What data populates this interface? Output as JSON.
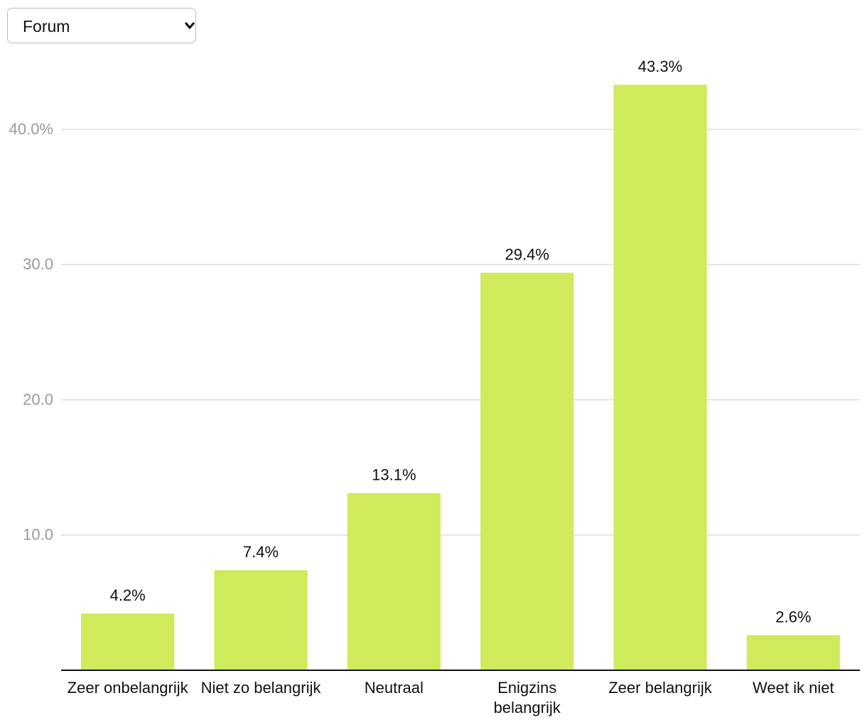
{
  "dropdown": {
    "selected": "Forum"
  },
  "chart_data": {
    "type": "bar",
    "categories": [
      "Zeer onbelangrijk",
      "Niet zo belangrijk",
      "Neutraal",
      "Enigzins belangrijk",
      "Zeer belangrijk",
      "Weet ik niet"
    ],
    "values": [
      4.2,
      7.4,
      13.1,
      29.4,
      43.3,
      2.6
    ],
    "value_labels": [
      "4.2%",
      "7.4%",
      "13.1%",
      "29.4%",
      "43.3%",
      "2.6%"
    ],
    "color": "#cfea5a",
    "ylim": [
      0,
      45
    ],
    "yticks": [
      {
        "value": 10,
        "label": "10.0"
      },
      {
        "value": 20,
        "label": "20.0"
      },
      {
        "value": 30,
        "label": "30.0"
      },
      {
        "value": 40,
        "label": "40.0%"
      }
    ],
    "grid": true
  }
}
